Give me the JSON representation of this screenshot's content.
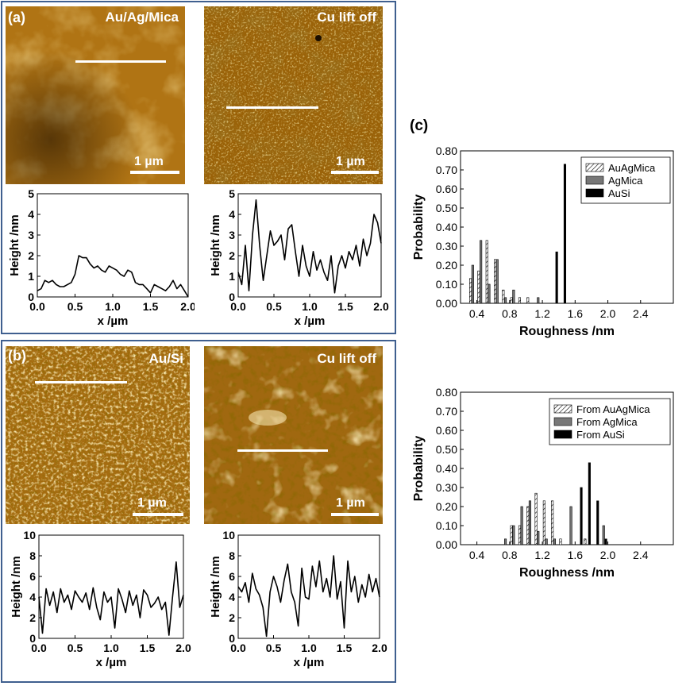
{
  "labels": {
    "a": "(a)",
    "b": "(b)",
    "c": "(c)"
  },
  "colors": {
    "border": "#3f5f8f",
    "afm_mid": "#a86a10"
  },
  "images": [
    {
      "name": "au-ag-mica",
      "title": "Au/Ag/Mica",
      "scale": "1 µm",
      "style": "smooth"
    },
    {
      "name": "cu-lift-off-a",
      "title": "Cu lift off",
      "scale": "1 µm",
      "style": "grainy-fine"
    },
    {
      "name": "au-si",
      "title": "Au/Si",
      "scale": "1 µm",
      "style": "grainy"
    },
    {
      "name": "cu-lift-off-b",
      "title": "Cu lift off",
      "scale": "1 µm",
      "style": "blotchy"
    }
  ],
  "chart_data": [
    {
      "type": "line",
      "title": "",
      "xlabel": "x /µm",
      "ylabel": "Height /nm",
      "xlim": [
        0,
        2.0
      ],
      "ylim": [
        0,
        5
      ],
      "xticks": [
        "0.0",
        "0.5",
        "1.0",
        "1.5",
        "2.0"
      ],
      "yticks": [
        "0",
        "1",
        "2",
        "3",
        "4",
        "5"
      ],
      "x": [
        0,
        0.05,
        0.1,
        0.15,
        0.2,
        0.25,
        0.3,
        0.35,
        0.4,
        0.45,
        0.5,
        0.55,
        0.6,
        0.65,
        0.7,
        0.75,
        0.8,
        0.85,
        0.9,
        0.95,
        1.0,
        1.05,
        1.1,
        1.15,
        1.2,
        1.25,
        1.3,
        1.35,
        1.4,
        1.45,
        1.5,
        1.55,
        1.6,
        1.65,
        1.7,
        1.75,
        1.8,
        1.85,
        1.9,
        1.95,
        2.0
      ],
      "y": [
        0.3,
        0.4,
        0.8,
        0.7,
        0.8,
        0.6,
        0.5,
        0.5,
        0.6,
        0.7,
        1.1,
        2.0,
        1.9,
        1.9,
        1.6,
        1.4,
        1.5,
        1.3,
        1.2,
        1.5,
        1.4,
        1.3,
        1.1,
        1.0,
        1.3,
        1.2,
        0.7,
        0.6,
        0.6,
        0.4,
        0.2,
        0.6,
        0.5,
        0.4,
        0.3,
        0.5,
        0.8,
        0.4,
        0.6,
        0.3,
        0.0
      ]
    },
    {
      "type": "line",
      "title": "",
      "xlabel": "x /µm",
      "ylabel": "Height /nm",
      "xlim": [
        0,
        2.0
      ],
      "ylim": [
        0,
        5
      ],
      "xticks": [
        "0.0",
        "0.5",
        "1.0",
        "1.5",
        "2.0"
      ],
      "yticks": [
        "0",
        "1",
        "2",
        "3",
        "4",
        "5"
      ],
      "x": [
        0,
        0.05,
        0.1,
        0.15,
        0.2,
        0.25,
        0.3,
        0.35,
        0.4,
        0.45,
        0.5,
        0.55,
        0.6,
        0.65,
        0.7,
        0.75,
        0.8,
        0.85,
        0.9,
        0.95,
        1.0,
        1.05,
        1.1,
        1.15,
        1.2,
        1.25,
        1.3,
        1.35,
        1.4,
        1.45,
        1.5,
        1.55,
        1.6,
        1.65,
        1.7,
        1.75,
        1.8,
        1.85,
        1.9,
        1.95,
        2.0
      ],
      "y": [
        1.2,
        0.6,
        2.5,
        0.3,
        3.0,
        4.7,
        2.5,
        0.8,
        2.0,
        3.2,
        2.5,
        2.7,
        3.0,
        1.8,
        3.3,
        3.5,
        2.2,
        1.0,
        2.5,
        1.5,
        1.0,
        2.2,
        1.3,
        1.8,
        1.2,
        0.8,
        2.0,
        0.2,
        1.5,
        2.0,
        1.4,
        2.2,
        1.8,
        2.5,
        1.5,
        2.8,
        2.0,
        2.6,
        4.0,
        3.6,
        2.6
      ]
    },
    {
      "type": "line",
      "title": "",
      "xlabel": "x /µm",
      "ylabel": "Height /nm",
      "xlim": [
        0,
        2.0
      ],
      "ylim": [
        0,
        10
      ],
      "xticks": [
        "0.0",
        "0.5",
        "1.0",
        "1.5",
        "2.0"
      ],
      "yticks": [
        "0",
        "2",
        "4",
        "6",
        "8",
        "10"
      ],
      "x": [
        0,
        0.05,
        0.1,
        0.15,
        0.2,
        0.25,
        0.3,
        0.35,
        0.4,
        0.45,
        0.5,
        0.55,
        0.6,
        0.65,
        0.7,
        0.75,
        0.8,
        0.85,
        0.9,
        0.95,
        1.0,
        1.05,
        1.1,
        1.15,
        1.2,
        1.25,
        1.3,
        1.35,
        1.4,
        1.45,
        1.5,
        1.55,
        1.6,
        1.65,
        1.7,
        1.75,
        1.8,
        1.85,
        1.9,
        1.95,
        2.0
      ],
      "y": [
        4.0,
        0.5,
        4.8,
        3.2,
        4.5,
        2.5,
        4.8,
        3.5,
        4.2,
        2.8,
        4.6,
        4.0,
        3.5,
        4.4,
        2.8,
        4.9,
        3.0,
        1.8,
        4.5,
        3.5,
        4.0,
        1.0,
        4.8,
        3.8,
        2.5,
        4.6,
        3.2,
        4.2,
        2.0,
        4.7,
        4.2,
        3.0,
        3.4,
        4.0,
        2.8,
        3.5,
        0.3,
        4.0,
        7.4,
        3.0,
        4.2
      ]
    },
    {
      "type": "line",
      "title": "",
      "xlabel": "x /µm",
      "ylabel": "Height /nm",
      "xlim": [
        0,
        2.0
      ],
      "ylim": [
        0,
        10
      ],
      "xticks": [
        "0.0",
        "0.5",
        "1.0",
        "1.5",
        "2.0"
      ],
      "yticks": [
        "0",
        "2",
        "4",
        "6",
        "8",
        "10"
      ],
      "x": [
        0,
        0.05,
        0.1,
        0.15,
        0.2,
        0.25,
        0.3,
        0.35,
        0.4,
        0.45,
        0.5,
        0.55,
        0.6,
        0.65,
        0.7,
        0.75,
        0.8,
        0.85,
        0.9,
        0.95,
        1.0,
        1.05,
        1.1,
        1.15,
        1.2,
        1.25,
        1.3,
        1.35,
        1.4,
        1.45,
        1.5,
        1.55,
        1.6,
        1.65,
        1.7,
        1.75,
        1.8,
        1.85,
        1.9,
        1.95,
        2.0
      ],
      "y": [
        5.0,
        4.5,
        5.4,
        3.5,
        6.3,
        4.8,
        4.2,
        3.0,
        0.2,
        4.5,
        6.0,
        5.0,
        3.5,
        5.6,
        7.2,
        4.5,
        3.5,
        1.2,
        6.8,
        4.0,
        3.8,
        7.0,
        5.0,
        7.5,
        4.5,
        5.8,
        4.0,
        8.0,
        3.8,
        5.5,
        1.0,
        7.5,
        4.5,
        6.0,
        3.5,
        5.2,
        4.0,
        6.2,
        4.5,
        5.8,
        4.0
      ]
    },
    {
      "type": "bar",
      "title": "",
      "xlabel": "Roughness /nm",
      "ylabel": "Probability",
      "xlim": [
        0.2,
        2.8
      ],
      "ylim": [
        0,
        0.8
      ],
      "xticks": [
        "0.4",
        "0.8",
        "1.2",
        "1.6",
        "2.0",
        "2.4"
      ],
      "yticks": [
        "0.00",
        "0.10",
        "0.20",
        "0.30",
        "0.40",
        "0.50",
        "0.60",
        "0.70",
        "0.80"
      ],
      "bin_width": 0.1,
      "legend_position": "top-right",
      "series": [
        {
          "name": "AuAgMica",
          "pattern": "hatched",
          "x": [
            0.35,
            0.45,
            0.55,
            0.65,
            0.75,
            0.85,
            0.95,
            1.05
          ],
          "values": [
            0.13,
            0.17,
            0.33,
            0.23,
            0.07,
            0.03,
            0.03,
            0.03
          ]
        },
        {
          "name": "AgMica",
          "pattern": "gray",
          "x": [
            0.35,
            0.45,
            0.55,
            0.65,
            0.75,
            0.85,
            1.15
          ],
          "values": [
            0.2,
            0.33,
            0.1,
            0.23,
            0.03,
            0.07,
            0.03
          ]
        },
        {
          "name": "AuSi",
          "pattern": "black",
          "x": [
            1.35,
            1.45
          ],
          "values": [
            0.27,
            0.73
          ]
        }
      ]
    },
    {
      "type": "bar",
      "title": "",
      "xlabel": "Roughness /nm",
      "ylabel": "Probability",
      "xlim": [
        0.2,
        2.8
      ],
      "ylim": [
        0,
        0.8
      ],
      "xticks": [
        "0.4",
        "0.8",
        "1.2",
        "1.6",
        "2.0",
        "2.4"
      ],
      "yticks": [
        "0.00",
        "0.10",
        "0.20",
        "0.30",
        "0.40",
        "0.50",
        "0.60",
        "0.70",
        "0.80"
      ],
      "bin_width": 0.1,
      "legend_position": "top-right",
      "series": [
        {
          "name": "From AuAgMica",
          "pattern": "hatched",
          "x": [
            0.85,
            0.95,
            1.05,
            1.15,
            1.25,
            1.35,
            1.45,
            1.75
          ],
          "values": [
            0.1,
            0.1,
            0.2,
            0.27,
            0.23,
            0.23,
            0.03,
            0.03
          ]
        },
        {
          "name": "From AgMica",
          "pattern": "gray",
          "x": [
            0.75,
            0.85,
            0.95,
            1.05,
            1.15,
            1.25,
            1.35,
            1.55,
            1.95
          ],
          "values": [
            0.03,
            0.1,
            0.2,
            0.23,
            0.07,
            0.03,
            0.03,
            0.2,
            0.1
          ]
        },
        {
          "name": "From AuSi",
          "pattern": "black",
          "x": [
            1.65,
            1.75,
            1.85,
            1.95
          ],
          "values": [
            0.3,
            0.43,
            0.23,
            0.03
          ]
        }
      ]
    }
  ]
}
